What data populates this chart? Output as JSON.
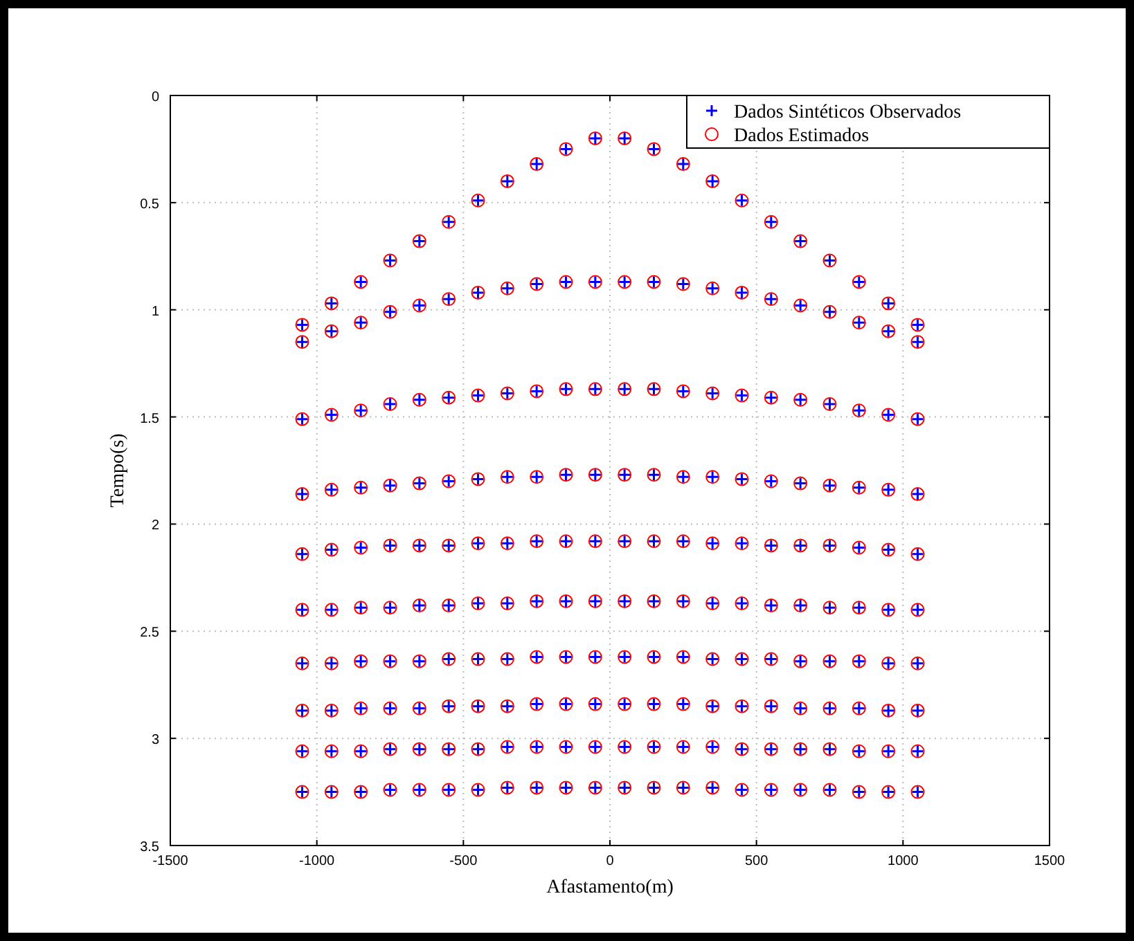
{
  "chart_data": {
    "type": "scatter",
    "xlabel": "Afastamento(m)",
    "ylabel": "Tempo(s)",
    "xlim": [
      -1500,
      1500
    ],
    "xticks": [
      -1500,
      -1000,
      -500,
      0,
      500,
      1000,
      1500
    ],
    "ylim": [
      3.5,
      0
    ],
    "yticks": [
      0,
      0.5,
      1,
      1.5,
      2,
      2.5,
      3,
      3.5
    ],
    "grid": true,
    "legend": "top right",
    "line_style": "dotted",
    "series": [
      {
        "name": "Dados Sintéticos Observados",
        "color": "#0000ff",
        "marker": "cross",
        "x": [
          -1050,
          -950,
          -850,
          -750,
          -650,
          -550,
          -450,
          -350,
          -250,
          -150,
          -50,
          50,
          150,
          250,
          350,
          450,
          550,
          650,
          750,
          850,
          950,
          1050,
          -1050,
          -950,
          -850,
          -750,
          -650,
          -550,
          -450,
          -350,
          -250,
          -150,
          -50,
          50,
          150,
          250,
          350,
          450,
          550,
          650,
          750,
          850,
          950,
          1050,
          -1050,
          -950,
          -850,
          -750,
          -650,
          -550,
          -450,
          -350,
          -250,
          -150,
          -50,
          50,
          150,
          250,
          350,
          450,
          550,
          650,
          750,
          850,
          950,
          1050,
          -1050,
          -950,
          -850,
          -750,
          -650,
          -550,
          -450,
          -350,
          -250,
          -150,
          -50,
          50,
          150,
          250,
          350,
          450,
          550,
          650,
          750,
          850,
          950,
          1050,
          -1050,
          -950,
          -850,
          -750,
          -650,
          -550,
          -450,
          -350,
          -250,
          -150,
          -50,
          50,
          150,
          250,
          350,
          450,
          550,
          650,
          750,
          850,
          950,
          1050,
          -1050,
          -950,
          -850,
          -750,
          -650,
          -550,
          -450,
          -350,
          -250,
          -150,
          -50,
          50,
          150,
          250,
          350,
          450,
          550,
          650,
          750,
          850,
          950,
          1050,
          -1050,
          -950,
          -850,
          -750,
          -650,
          -550,
          -450,
          -350,
          -250,
          -150,
          -50,
          50,
          150,
          250,
          350,
          450,
          550,
          650,
          750,
          850,
          950,
          1050,
          -1050,
          -950,
          -850,
          -750,
          -650,
          -550,
          -450,
          -350,
          -250,
          -150,
          -50,
          50,
          150,
          250,
          350,
          450,
          550,
          650,
          750,
          850,
          950,
          1050,
          -1050,
          -950,
          -850,
          -750,
          -650,
          -550,
          -450,
          -350,
          -250,
          -150,
          -50,
          50,
          150,
          250,
          350,
          450,
          550,
          650,
          750,
          850,
          950,
          1050,
          -1050,
          -950,
          -850,
          -750,
          -650,
          -550,
          -450,
          -350,
          -250,
          -150,
          -50,
          50,
          150,
          250,
          350,
          450,
          550,
          650,
          750,
          850,
          950,
          1050
        ],
        "values": [
          1.07,
          0.97,
          0.87,
          0.77,
          0.68,
          0.59,
          0.49,
          0.4,
          0.32,
          0.25,
          0.2,
          0.2,
          0.25,
          0.32,
          0.4,
          0.49,
          0.59,
          0.68,
          0.77,
          0.87,
          0.97,
          1.07,
          1.15,
          1.1,
          1.06,
          1.01,
          0.98,
          0.95,
          0.92,
          0.9,
          0.88,
          0.87,
          0.87,
          0.87,
          0.87,
          0.88,
          0.9,
          0.92,
          0.95,
          0.98,
          1.01,
          1.06,
          1.1,
          1.15,
          1.51,
          1.49,
          1.47,
          1.44,
          1.42,
          1.41,
          1.4,
          1.39,
          1.38,
          1.37,
          1.37,
          1.37,
          1.37,
          1.38,
          1.39,
          1.4,
          1.41,
          1.42,
          1.44,
          1.47,
          1.49,
          1.51,
          1.86,
          1.84,
          1.83,
          1.82,
          1.81,
          1.8,
          1.79,
          1.78,
          1.78,
          1.77,
          1.77,
          1.77,
          1.77,
          1.78,
          1.78,
          1.79,
          1.8,
          1.81,
          1.82,
          1.83,
          1.84,
          1.86,
          2.14,
          2.12,
          2.11,
          2.1,
          2.1,
          2.1,
          2.09,
          2.09,
          2.08,
          2.08,
          2.08,
          2.08,
          2.08,
          2.08,
          2.09,
          2.09,
          2.1,
          2.1,
          2.1,
          2.11,
          2.12,
          2.14,
          2.4,
          2.4,
          2.39,
          2.39,
          2.38,
          2.38,
          2.37,
          2.37,
          2.36,
          2.36,
          2.36,
          2.36,
          2.36,
          2.36,
          2.37,
          2.37,
          2.38,
          2.38,
          2.39,
          2.39,
          2.4,
          2.4,
          2.65,
          2.65,
          2.64,
          2.64,
          2.64,
          2.63,
          2.63,
          2.63,
          2.62,
          2.62,
          2.62,
          2.62,
          2.62,
          2.62,
          2.63,
          2.63,
          2.63,
          2.64,
          2.64,
          2.64,
          2.65,
          2.65,
          2.87,
          2.87,
          2.86,
          2.86,
          2.86,
          2.85,
          2.85,
          2.85,
          2.84,
          2.84,
          2.84,
          2.84,
          2.84,
          2.84,
          2.85,
          2.85,
          2.85,
          2.86,
          2.86,
          2.86,
          2.87,
          2.87,
          3.06,
          3.06,
          3.06,
          3.05,
          3.05,
          3.05,
          3.05,
          3.04,
          3.04,
          3.04,
          3.04,
          3.04,
          3.04,
          3.04,
          3.04,
          3.05,
          3.05,
          3.05,
          3.05,
          3.06,
          3.06,
          3.06,
          3.25,
          3.25,
          3.25,
          3.24,
          3.24,
          3.24,
          3.24,
          3.23,
          3.23,
          3.23,
          3.23,
          3.23,
          3.23,
          3.23,
          3.23,
          3.24,
          3.24,
          3.24,
          3.24,
          3.25,
          3.25,
          3.25
        ]
      },
      {
        "name": "Dados Estimados",
        "color": "#ff0000",
        "marker": "circle",
        "x": [
          -1050,
          -950,
          -850,
          -750,
          -650,
          -550,
          -450,
          -350,
          -250,
          -150,
          -50,
          50,
          150,
          250,
          350,
          450,
          550,
          650,
          750,
          850,
          950,
          1050,
          -1050,
          -950,
          -850,
          -750,
          -650,
          -550,
          -450,
          -350,
          -250,
          -150,
          -50,
          50,
          150,
          250,
          350,
          450,
          550,
          650,
          750,
          850,
          950,
          1050,
          -1050,
          -950,
          -850,
          -750,
          -650,
          -550,
          -450,
          -350,
          -250,
          -150,
          -50,
          50,
          150,
          250,
          350,
          450,
          550,
          650,
          750,
          850,
          950,
          1050,
          -1050,
          -950,
          -850,
          -750,
          -650,
          -550,
          -450,
          -350,
          -250,
          -150,
          -50,
          50,
          150,
          250,
          350,
          450,
          550,
          650,
          750,
          850,
          950,
          1050,
          -1050,
          -950,
          -850,
          -750,
          -650,
          -550,
          -450,
          -350,
          -250,
          -150,
          -50,
          50,
          150,
          250,
          350,
          450,
          550,
          650,
          750,
          850,
          950,
          1050,
          -1050,
          -950,
          -850,
          -750,
          -650,
          -550,
          -450,
          -350,
          -250,
          -150,
          -50,
          50,
          150,
          250,
          350,
          450,
          550,
          650,
          750,
          850,
          950,
          1050,
          -1050,
          -950,
          -850,
          -750,
          -650,
          -550,
          -450,
          -350,
          -250,
          -150,
          -50,
          50,
          150,
          250,
          350,
          450,
          550,
          650,
          750,
          850,
          950,
          1050,
          -1050,
          -950,
          -850,
          -750,
          -650,
          -550,
          -450,
          -350,
          -250,
          -150,
          -50,
          50,
          150,
          250,
          350,
          450,
          550,
          650,
          750,
          850,
          950,
          1050,
          -1050,
          -950,
          -850,
          -750,
          -650,
          -550,
          -450,
          -350,
          -250,
          -150,
          -50,
          50,
          150,
          250,
          350,
          450,
          550,
          650,
          750,
          850,
          950,
          1050,
          -1050,
          -950,
          -850,
          -750,
          -650,
          -550,
          -450,
          -350,
          -250,
          -150,
          -50,
          50,
          150,
          250,
          350,
          450,
          550,
          650,
          750,
          850,
          950,
          1050
        ],
        "values": [
          1.07,
          0.97,
          0.87,
          0.77,
          0.68,
          0.59,
          0.49,
          0.4,
          0.32,
          0.25,
          0.2,
          0.2,
          0.25,
          0.32,
          0.4,
          0.49,
          0.59,
          0.68,
          0.77,
          0.87,
          0.97,
          1.07,
          1.15,
          1.1,
          1.06,
          1.01,
          0.98,
          0.95,
          0.92,
          0.9,
          0.88,
          0.87,
          0.87,
          0.87,
          0.87,
          0.88,
          0.9,
          0.92,
          0.95,
          0.98,
          1.01,
          1.06,
          1.1,
          1.15,
          1.51,
          1.49,
          1.47,
          1.44,
          1.42,
          1.41,
          1.4,
          1.39,
          1.38,
          1.37,
          1.37,
          1.37,
          1.37,
          1.38,
          1.39,
          1.4,
          1.41,
          1.42,
          1.44,
          1.47,
          1.49,
          1.51,
          1.86,
          1.84,
          1.83,
          1.82,
          1.81,
          1.8,
          1.79,
          1.78,
          1.78,
          1.77,
          1.77,
          1.77,
          1.77,
          1.78,
          1.78,
          1.79,
          1.8,
          1.81,
          1.82,
          1.83,
          1.84,
          1.86,
          2.14,
          2.12,
          2.11,
          2.1,
          2.1,
          2.1,
          2.09,
          2.09,
          2.08,
          2.08,
          2.08,
          2.08,
          2.08,
          2.08,
          2.09,
          2.09,
          2.1,
          2.1,
          2.1,
          2.11,
          2.12,
          2.14,
          2.4,
          2.4,
          2.39,
          2.39,
          2.38,
          2.38,
          2.37,
          2.37,
          2.36,
          2.36,
          2.36,
          2.36,
          2.36,
          2.36,
          2.37,
          2.37,
          2.38,
          2.38,
          2.39,
          2.39,
          2.4,
          2.4,
          2.65,
          2.65,
          2.64,
          2.64,
          2.64,
          2.63,
          2.63,
          2.63,
          2.62,
          2.62,
          2.62,
          2.62,
          2.62,
          2.62,
          2.63,
          2.63,
          2.63,
          2.64,
          2.64,
          2.64,
          2.65,
          2.65,
          2.87,
          2.87,
          2.86,
          2.86,
          2.86,
          2.85,
          2.85,
          2.85,
          2.84,
          2.84,
          2.84,
          2.84,
          2.84,
          2.84,
          2.85,
          2.85,
          2.85,
          2.86,
          2.86,
          2.86,
          2.87,
          2.87,
          3.06,
          3.06,
          3.06,
          3.05,
          3.05,
          3.05,
          3.05,
          3.04,
          3.04,
          3.04,
          3.04,
          3.04,
          3.04,
          3.04,
          3.04,
          3.05,
          3.05,
          3.05,
          3.05,
          3.06,
          3.06,
          3.06,
          3.25,
          3.25,
          3.25,
          3.24,
          3.24,
          3.24,
          3.24,
          3.23,
          3.23,
          3.23,
          3.23,
          3.23,
          3.23,
          3.23,
          3.23,
          3.24,
          3.24,
          3.24,
          3.24,
          3.25,
          3.25,
          3.25
        ]
      }
    ]
  }
}
